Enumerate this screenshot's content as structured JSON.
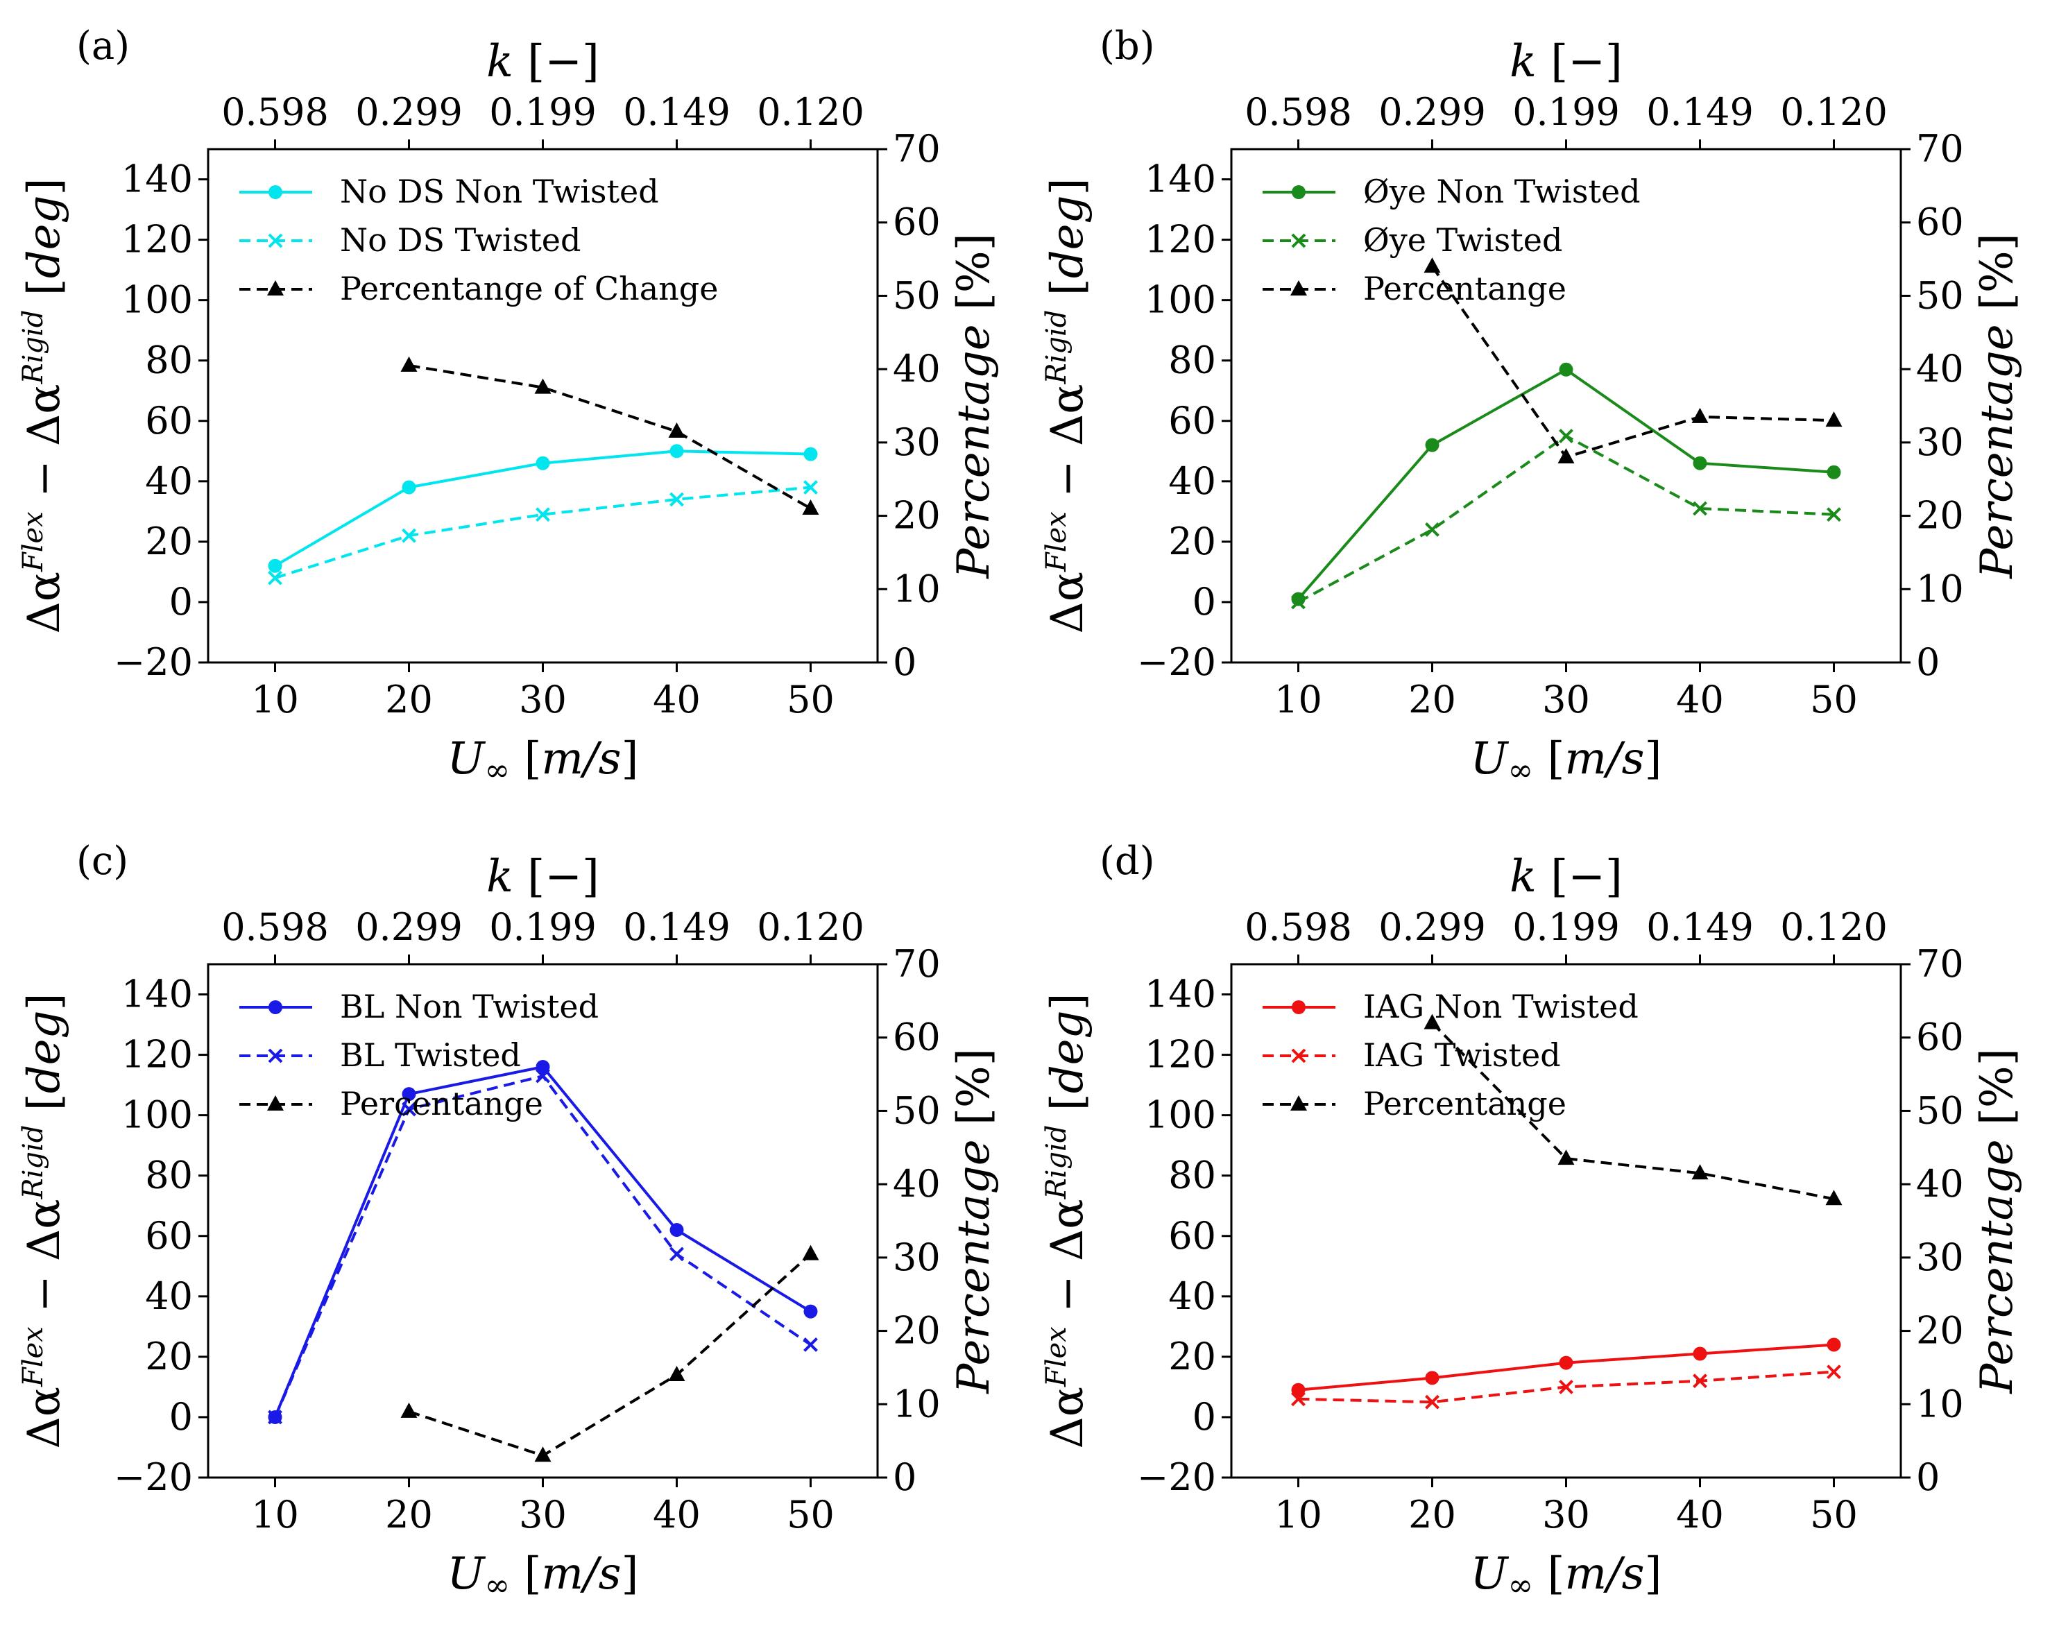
{
  "figure": {
    "top_axis_label": "k [−]",
    "bottom_axis_label": "U∞ [m/s]",
    "left_axis_label": "Δα^Flex − Δα^Rigid [deg]",
    "right_axis_label": "Percentage [%]"
  },
  "chart_data": [
    {
      "type": "line",
      "panel": "(a)",
      "x": [
        10,
        20,
        30,
        40,
        50
      ],
      "top_ticks": [
        "0.598",
        "0.299",
        "0.199",
        "0.149",
        "0.120"
      ],
      "xlim": [
        5,
        55
      ],
      "ylim_left": [
        -20,
        150
      ],
      "ylim_right": [
        0,
        70
      ],
      "yticks_left": [
        -20,
        0,
        20,
        40,
        60,
        80,
        100,
        120,
        140
      ],
      "yticks_right": [
        0,
        10,
        20,
        30,
        40,
        50,
        60,
        70
      ],
      "xlabel": "U∞ [m/s]",
      "top_xlabel": "k [−]",
      "ylabel": "Δα^Flex − Δα^Rigid [deg]",
      "ylabel_right": "Percentage [%]",
      "legend_position": "upper-left",
      "series": [
        {
          "name": "No DS Non Twisted",
          "axis": "left",
          "color": "#00e5ee",
          "marker": "circle",
          "dash": "solid",
          "values": [
            12,
            38,
            46,
            50,
            49
          ]
        },
        {
          "name": "No DS Twisted",
          "axis": "left",
          "color": "#00e5ee",
          "marker": "x",
          "dash": "dashed",
          "values": [
            8,
            22,
            29,
            34,
            38
          ]
        },
        {
          "name": "Percentange of Change",
          "axis": "right",
          "color": "#000000",
          "marker": "triangle",
          "dash": "dashed",
          "values": [
            null,
            40.5,
            37.5,
            31.5,
            21
          ]
        }
      ]
    },
    {
      "type": "line",
      "panel": "(b)",
      "x": [
        10,
        20,
        30,
        40,
        50
      ],
      "top_ticks": [
        "0.598",
        "0.299",
        "0.199",
        "0.149",
        "0.120"
      ],
      "xlim": [
        5,
        55
      ],
      "ylim_left": [
        -20,
        150
      ],
      "ylim_right": [
        0,
        70
      ],
      "yticks_left": [
        -20,
        0,
        20,
        40,
        60,
        80,
        100,
        120,
        140
      ],
      "yticks_right": [
        0,
        10,
        20,
        30,
        40,
        50,
        60,
        70
      ],
      "xlabel": "U∞ [m/s]",
      "top_xlabel": "k [−]",
      "ylabel": "Δα^Flex − Δα^Rigid [deg]",
      "ylabel_right": "Percentage [%]",
      "legend_position": "upper-left",
      "series": [
        {
          "name": "Øye Non Twisted",
          "axis": "left",
          "color": "#1a8a1a",
          "marker": "circle",
          "dash": "solid",
          "values": [
            1,
            52,
            77,
            46,
            43
          ]
        },
        {
          "name": "Øye Twisted",
          "axis": "left",
          "color": "#1a8a1a",
          "marker": "x",
          "dash": "dashed",
          "values": [
            0,
            24,
            55,
            31,
            29
          ]
        },
        {
          "name": "Percentange",
          "axis": "right",
          "color": "#000000",
          "marker": "triangle",
          "dash": "dashed",
          "values": [
            null,
            54,
            28,
            33.5,
            33
          ]
        }
      ]
    },
    {
      "type": "line",
      "panel": "(c)",
      "x": [
        10,
        20,
        30,
        40,
        50
      ],
      "top_ticks": [
        "0.598",
        "0.299",
        "0.199",
        "0.149",
        "0.120"
      ],
      "xlim": [
        5,
        55
      ],
      "ylim_left": [
        -20,
        150
      ],
      "ylim_right": [
        0,
        70
      ],
      "yticks_left": [
        -20,
        0,
        20,
        40,
        60,
        80,
        100,
        120,
        140
      ],
      "yticks_right": [
        0,
        10,
        20,
        30,
        40,
        50,
        60,
        70
      ],
      "xlabel": "U∞ [m/s]",
      "top_xlabel": "k [−]",
      "ylabel": "Δα^Flex − Δα^Rigid [deg]",
      "ylabel_right": "Percentage [%]",
      "legend_position": "upper-left",
      "series": [
        {
          "name": "BL Non Twisted",
          "axis": "left",
          "color": "#1a1ae6",
          "marker": "circle",
          "dash": "solid",
          "values": [
            0,
            107,
            116,
            62,
            35
          ]
        },
        {
          "name": "BL Twisted",
          "axis": "left",
          "color": "#1a1ae6",
          "marker": "x",
          "dash": "dashed",
          "values": [
            0,
            102,
            113,
            54,
            24
          ]
        },
        {
          "name": "Percentange",
          "axis": "right",
          "color": "#000000",
          "marker": "triangle",
          "dash": "dashed",
          "values": [
            null,
            9,
            3,
            14,
            30.5
          ]
        }
      ]
    },
    {
      "type": "line",
      "panel": "(d)",
      "x": [
        10,
        20,
        30,
        40,
        50
      ],
      "top_ticks": [
        "0.598",
        "0.299",
        "0.199",
        "0.149",
        "0.120"
      ],
      "xlim": [
        5,
        55
      ],
      "ylim_left": [
        -20,
        150
      ],
      "ylim_right": [
        0,
        70
      ],
      "yticks_left": [
        -20,
        0,
        20,
        40,
        60,
        80,
        100,
        120,
        140
      ],
      "yticks_right": [
        0,
        10,
        20,
        30,
        40,
        50,
        60,
        70
      ],
      "xlabel": "U∞ [m/s]",
      "top_xlabel": "k [−]",
      "ylabel": "Δα^Flex − Δα^Rigid [deg]",
      "ylabel_right": "Percentage [%]",
      "legend_position": "upper-left",
      "series": [
        {
          "name": "IAG Non Twisted",
          "axis": "left",
          "color": "#ee1111",
          "marker": "circle",
          "dash": "solid",
          "values": [
            9,
            13,
            18,
            21,
            24
          ]
        },
        {
          "name": "IAG Twisted",
          "axis": "left",
          "color": "#ee1111",
          "marker": "x",
          "dash": "dashed",
          "values": [
            6,
            5,
            10,
            12,
            15
          ]
        },
        {
          "name": "Percentange",
          "axis": "right",
          "color": "#000000",
          "marker": "triangle",
          "dash": "dashed",
          "values": [
            null,
            62,
            43.5,
            41.5,
            38
          ]
        }
      ]
    }
  ]
}
